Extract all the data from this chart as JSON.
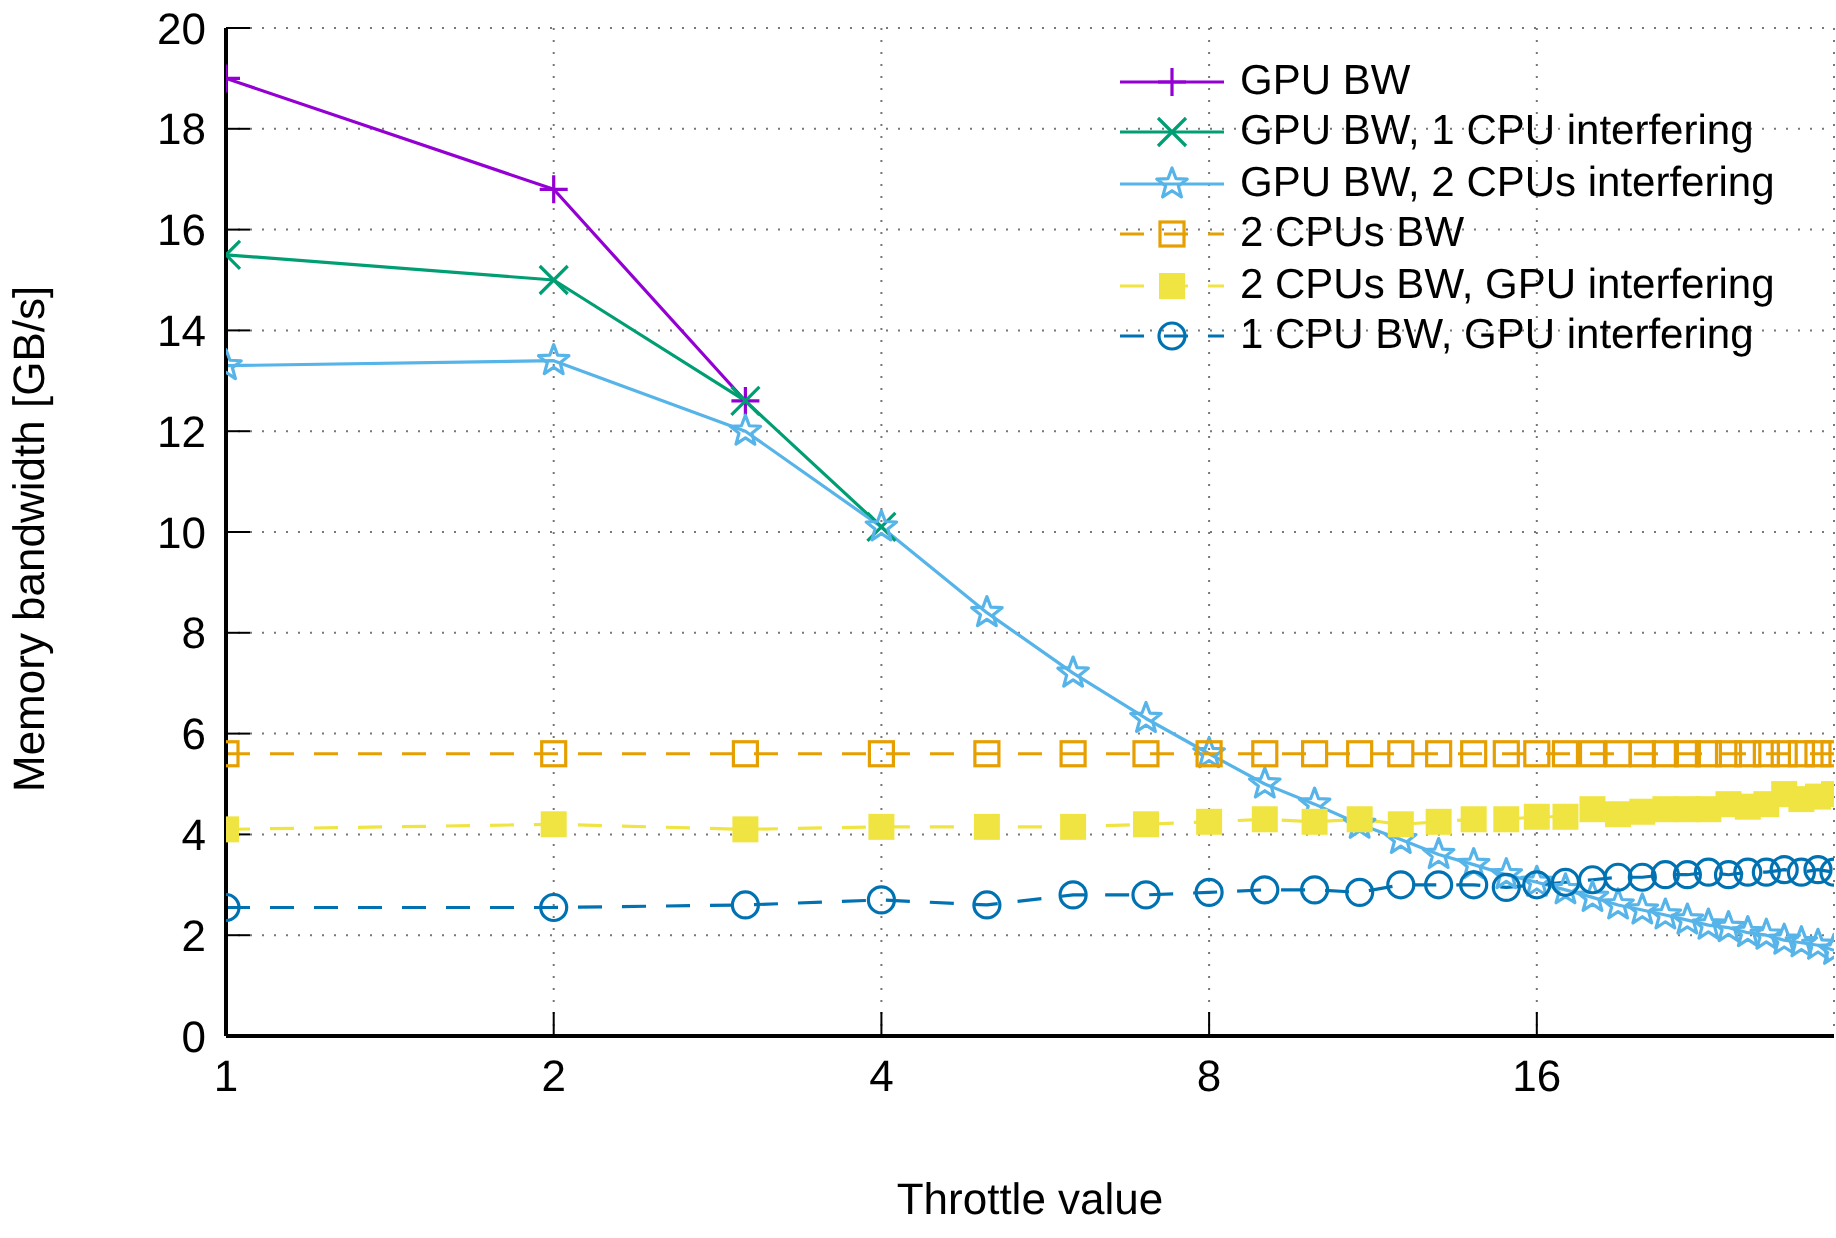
{
  "chart_data": {
    "type": "line",
    "xlabel": "Throttle value",
    "ylabel": "Memory bandwidth [GB/s]",
    "log": "x",
    "xlim": [
      1,
      30
    ],
    "xticks": [
      1,
      2,
      4,
      8,
      16
    ],
    "ylim": [
      0,
      20
    ],
    "yticks": [
      0,
      2,
      4,
      6,
      8,
      10,
      12,
      14,
      16,
      18,
      20
    ],
    "grid": true,
    "legend": "top right",
    "x": [
      1,
      2,
      3,
      4,
      5,
      6,
      7,
      8,
      9,
      10,
      11,
      12,
      13,
      14,
      15,
      16,
      17,
      18,
      19,
      20,
      21,
      22,
      23,
      24,
      25,
      26,
      27,
      28,
      29,
      30
    ],
    "series": [
      {
        "name": "GPU BW",
        "color": "#9400d3",
        "marker": "plus",
        "line_style": "solid",
        "values": [
          19.0,
          16.8,
          12.6,
          null,
          null,
          null,
          null,
          null,
          null,
          null,
          null,
          null,
          null,
          null,
          null,
          null,
          null,
          null,
          null,
          null,
          null,
          null,
          null,
          null,
          null,
          null,
          null,
          null,
          null,
          null
        ]
      },
      {
        "name": "GPU BW, 1 CPU interfering",
        "color": "#009e73",
        "marker": "cross",
        "line_style": "solid",
        "values": [
          15.5,
          15.0,
          12.6,
          10.1,
          null,
          null,
          null,
          null,
          null,
          null,
          null,
          null,
          null,
          null,
          null,
          null,
          null,
          null,
          null,
          null,
          null,
          null,
          null,
          null,
          null,
          null,
          null,
          null,
          null,
          null
        ]
      },
      {
        "name": "GPU BW, 2 CPUs interfering",
        "color": "#56b4e9",
        "marker": "star",
        "line_style": "solid",
        "values": [
          13.3,
          13.4,
          12.0,
          10.1,
          8.4,
          7.2,
          6.3,
          5.6,
          5.0,
          4.6,
          4.2,
          3.9,
          3.6,
          3.4,
          3.2,
          3.05,
          2.9,
          2.75,
          2.6,
          2.5,
          2.4,
          2.3,
          2.2,
          2.15,
          2.05,
          2.0,
          1.9,
          1.85,
          1.8,
          1.7
        ]
      },
      {
        "name": "2 CPUs BW",
        "color": "#e69f00",
        "marker": "square",
        "line_style": "dashed",
        "values": [
          5.6,
          5.6,
          5.6,
          5.6,
          5.6,
          5.6,
          5.6,
          5.6,
          5.6,
          5.6,
          5.6,
          5.6,
          5.6,
          5.6,
          5.6,
          5.6,
          5.6,
          5.6,
          5.6,
          5.6,
          5.6,
          5.6,
          5.6,
          5.6,
          5.6,
          5.6,
          5.6,
          5.6,
          5.6,
          5.6
        ]
      },
      {
        "name": "2 CPUs BW, GPU interfering",
        "color": "#f0e442",
        "marker": "square-filled",
        "line_style": "dashed",
        "values": [
          4.1,
          4.2,
          4.1,
          4.15,
          4.15,
          4.15,
          4.2,
          4.25,
          4.3,
          4.25,
          4.3,
          4.2,
          4.25,
          4.3,
          4.3,
          4.35,
          4.35,
          4.5,
          4.4,
          4.45,
          4.5,
          4.5,
          4.5,
          4.6,
          4.55,
          4.6,
          4.8,
          4.7,
          4.75,
          4.8
        ]
      },
      {
        "name": "1 CPU BW, GPU interfering",
        "color": "#0072b2",
        "marker": "circle",
        "line_style": "dashed",
        "values": [
          2.55,
          2.55,
          2.6,
          2.7,
          2.6,
          2.8,
          2.8,
          2.85,
          2.9,
          2.9,
          2.85,
          3.0,
          3.0,
          3.0,
          2.95,
          3.0,
          3.05,
          3.1,
          3.15,
          3.15,
          3.2,
          3.2,
          3.25,
          3.2,
          3.25,
          3.25,
          3.3,
          3.25,
          3.3,
          3.25
        ]
      }
    ]
  }
}
